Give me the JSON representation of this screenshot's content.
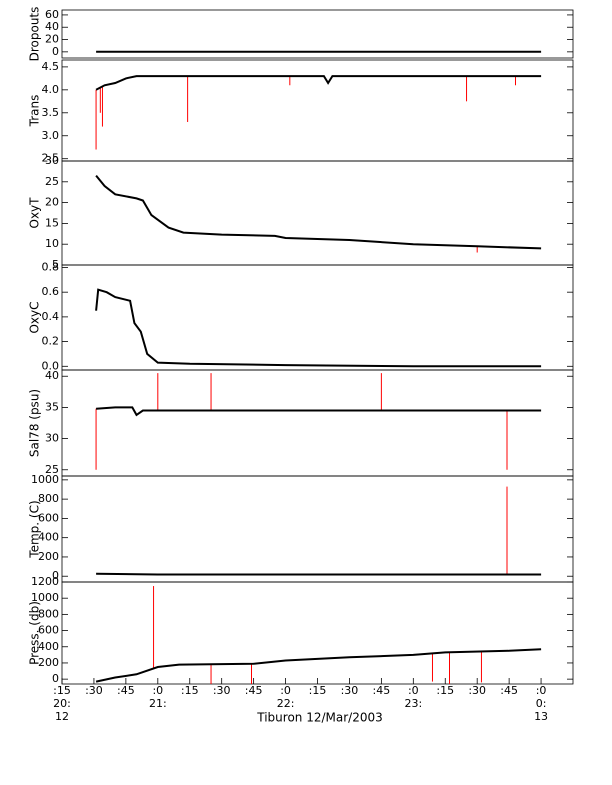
{
  "chart_data": [
    {
      "type": "line",
      "ylabel": "Dropouts",
      "ylim": [
        -10,
        68
      ],
      "yticks": [
        0,
        20,
        40,
        60
      ],
      "xlim": [
        "2003-03-12T20:15",
        "2003-03-13T00:15"
      ],
      "color": "#000000",
      "x": [
        "2003-03-12T20:31",
        "2003-03-13T00:00"
      ],
      "values": [
        0,
        0
      ]
    },
    {
      "type": "line",
      "ylabel": "Trans",
      "ylim": [
        2.45,
        4.65
      ],
      "yticks": [
        {
          "value": 2.5,
          "label": "2.5"
        },
        {
          "value": 3,
          "label": "3.0"
        },
        {
          "value": 3.5,
          "label": "3.5"
        },
        {
          "value": 4,
          "label": "4.0"
        },
        {
          "value": 4.5,
          "label": "4.5"
        }
      ],
      "xlim": [
        "2003-03-12T20:15",
        "2003-03-13T00:15"
      ],
      "color": "#000000",
      "x": [
        "2003-03-12T20:31",
        "2003-03-12T20:35",
        "2003-03-12T20:40",
        "2003-03-12T20:45",
        "2003-03-12T20:50",
        "2003-03-12T22:18",
        "2003-03-12T22:20",
        "2003-03-12T22:22",
        "2003-03-13T00:00"
      ],
      "values": [
        4.0,
        4.1,
        4.15,
        4.25,
        4.3,
        4.3,
        4.15,
        4.3,
        4.3
      ],
      "spikes": {
        "color": "#ff0000",
        "x": [
          "2003-03-12T20:31",
          "2003-03-12T20:33",
          "2003-03-12T20:34",
          "2003-03-12T21:14",
          "2003-03-12T22:02",
          "2003-03-12T23:25",
          "2003-03-12T23:48"
        ],
        "values": [
          2.7,
          3.5,
          3.2,
          3.3,
          4.1,
          3.75,
          4.1
        ]
      }
    },
    {
      "type": "line",
      "ylabel": "OxyT",
      "ylim": [
        5,
        30
      ],
      "yticks": [
        5,
        10,
        15,
        20,
        25,
        30
      ],
      "xlim": [
        "2003-03-12T20:15",
        "2003-03-13T00:15"
      ],
      "color": "#000000",
      "x": [
        "2003-03-12T20:31",
        "2003-03-12T20:35",
        "2003-03-12T20:40",
        "2003-03-12T20:50",
        "2003-03-12T20:53",
        "2003-03-12T20:57",
        "2003-03-12T21:05",
        "2003-03-12T21:12",
        "2003-03-12T21:30",
        "2003-03-12T21:55",
        "2003-03-12T22:00",
        "2003-03-12T22:30",
        "2003-03-12T23:00",
        "2003-03-12T23:30",
        "2003-03-13T00:00"
      ],
      "values": [
        26.5,
        24,
        22,
        21,
        20.5,
        17,
        14,
        12.8,
        12.3,
        12.0,
        11.5,
        11.0,
        10.0,
        9.5,
        9.0
      ],
      "spikes": {
        "color": "#ff0000",
        "x": [
          "2003-03-12T23:30"
        ],
        "values": [
          8.0
        ]
      }
    },
    {
      "type": "line",
      "ylabel": "OxyC",
      "ylim": [
        -0.03,
        0.82
      ],
      "yticks": [
        {
          "value": 0,
          "label": "0.0"
        },
        0.2,
        0.4,
        0.6,
        0.8
      ],
      "xlim": [
        "2003-03-12T20:15",
        "2003-03-13T00:15"
      ],
      "color": "#000000",
      "x": [
        "2003-03-12T20:31",
        "2003-03-12T20:32",
        "2003-03-12T20:36",
        "2003-03-12T20:40",
        "2003-03-12T20:47",
        "2003-03-12T20:49",
        "2003-03-12T20:52",
        "2003-03-12T20:55",
        "2003-03-12T21:00",
        "2003-03-12T21:15",
        "2003-03-12T22:00",
        "2003-03-12T23:00",
        "2003-03-13T00:00"
      ],
      "values": [
        0.45,
        0.62,
        0.6,
        0.56,
        0.53,
        0.35,
        0.28,
        0.1,
        0.03,
        0.02,
        0.01,
        0,
        0
      ]
    },
    {
      "type": "line",
      "ylabel": "Sal78 (psu)",
      "ylim": [
        24,
        41
      ],
      "yticks": [
        25,
        30,
        35,
        40
      ],
      "xlim": [
        "2003-03-12T20:15",
        "2003-03-13T00:15"
      ],
      "color": "#000000",
      "x": [
        "2003-03-12T20:31",
        "2003-03-12T20:40",
        "2003-03-12T20:48",
        "2003-03-12T20:50",
        "2003-03-12T20:53",
        "2003-03-13T00:00"
      ],
      "values": [
        34.8,
        35.0,
        35.0,
        33.8,
        34.5,
        34.5
      ],
      "spikes": {
        "color": "#ff0000",
        "x": [
          "2003-03-12T20:31",
          "2003-03-12T21:00",
          "2003-03-12T21:25",
          "2003-03-12T22:45",
          "2003-03-12T23:44"
        ],
        "values": [
          25,
          40.5,
          40.5,
          40.5,
          25
        ]
      }
    },
    {
      "type": "line",
      "ylabel": "Temp. (C)",
      "ylim": [
        -60,
        1040
      ],
      "yticks": [
        0,
        200,
        400,
        600,
        800,
        1000
      ],
      "xlim": [
        "2003-03-12T20:15",
        "2003-03-13T00:15"
      ],
      "color": "#000000",
      "x": [
        "2003-03-12T20:31",
        "2003-03-12T21:00",
        "2003-03-13T00:00"
      ],
      "values": [
        25,
        18,
        18
      ],
      "spikes": {
        "color": "#ff0000",
        "x": [
          "2003-03-12T23:44"
        ],
        "values": [
          930
        ]
      }
    },
    {
      "type": "line",
      "ylabel": "Press. (db)",
      "ylim": [
        -60,
        1200
      ],
      "yticks": [
        0,
        200,
        400,
        600,
        800,
        1000,
        1200
      ],
      "xlim": [
        "2003-03-12T20:15",
        "2003-03-13T00:15"
      ],
      "color": "#000000",
      "x": [
        "2003-03-12T20:31",
        "2003-03-12T20:40",
        "2003-03-12T20:50",
        "2003-03-12T21:00",
        "2003-03-12T21:10",
        "2003-03-12T21:45",
        "2003-03-12T22:00",
        "2003-03-12T22:30",
        "2003-03-12T23:00",
        "2003-03-12T23:15",
        "2003-03-12T23:45",
        "2003-03-13T00:00"
      ],
      "values": [
        -30,
        20,
        60,
        150,
        180,
        190,
        230,
        270,
        300,
        330,
        350,
        370
      ],
      "spikes": {
        "color": "#ff0000",
        "x": [
          "2003-03-12T20:58",
          "2003-03-12T21:25",
          "2003-03-12T21:44",
          "2003-03-12T23:09",
          "2003-03-12T23:17",
          "2003-03-12T23:32"
        ],
        "values": [
          1150,
          -60,
          -60,
          -30,
          -60,
          -40
        ]
      },
      "xlabel": "Tiburon 12/Mar/2003",
      "xticks": [
        {
          "value": "2003-03-12T20:15",
          "label": ":15"
        },
        {
          "value": "2003-03-12T20:30",
          "label": ":30"
        },
        {
          "value": "2003-03-12T20:45",
          "label": ":45"
        },
        {
          "value": "2003-03-12T21:00",
          "label": ":0"
        },
        {
          "value": "2003-03-12T21:15",
          "label": ":15"
        },
        {
          "value": "2003-03-12T21:30",
          "label": ":30"
        },
        {
          "value": "2003-03-12T21:45",
          "label": ":45"
        },
        {
          "value": "2003-03-12T22:00",
          "label": ":0"
        },
        {
          "value": "2003-03-12T22:15",
          "label": ":15"
        },
        {
          "value": "2003-03-12T22:30",
          "label": ":30"
        },
        {
          "value": "2003-03-12T22:45",
          "label": ":45"
        },
        {
          "value": "2003-03-12T23:00",
          "label": ":0"
        },
        {
          "value": "2003-03-12T23:15",
          "label": ":15"
        },
        {
          "value": "2003-03-12T23:30",
          "label": ":30"
        },
        {
          "value": "2003-03-12T23:45",
          "label": ":45"
        },
        {
          "value": "2003-03-13T00:00",
          "label": ":0"
        }
      ],
      "xticks_hour": [
        {
          "value": "2003-03-12T20:15",
          "label": "20:"
        },
        {
          "value": "2003-03-12T21:00",
          "label": "21:"
        },
        {
          "value": "2003-03-12T22:00",
          "label": "22:"
        },
        {
          "value": "2003-03-12T23:00",
          "label": "23:"
        },
        {
          "value": "2003-03-13T00:00",
          "label": "0:"
        }
      ],
      "xticks_day": [
        {
          "value": "2003-03-12T20:15",
          "label": "12"
        },
        {
          "value": "2003-03-13T00:00",
          "label": "13"
        }
      ]
    }
  ]
}
